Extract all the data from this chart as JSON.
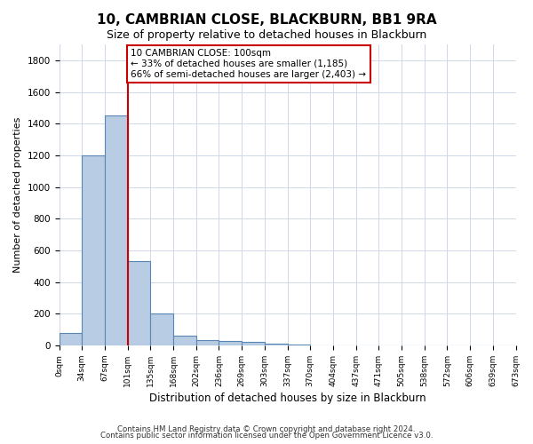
{
  "title1": "10, CAMBRIAN CLOSE, BLACKBURN, BB1 9RA",
  "title2": "Size of property relative to detached houses in Blackburn",
  "xlabel": "Distribution of detached houses by size in Blackburn",
  "ylabel": "Number of detached properties",
  "bar_values": [
    80,
    1200,
    1450,
    530,
    200,
    60,
    35,
    30,
    20,
    10,
    5,
    2,
    1,
    0,
    0,
    0,
    0,
    0,
    0,
    0
  ],
  "bin_labels": [
    "0sqm",
    "34sqm",
    "67sqm",
    "101sqm",
    "135sqm",
    "168sqm",
    "202sqm",
    "236sqm",
    "269sqm",
    "303sqm",
    "337sqm",
    "370sqm",
    "404sqm",
    "437sqm",
    "471sqm",
    "505sqm",
    "538sqm",
    "572sqm",
    "606sqm",
    "639sqm",
    "673sqm"
  ],
  "bar_color": "#b8cce4",
  "bar_edge_color": "#5a86b5",
  "vline_x": 3,
  "vline_color": "#cc0000",
  "annotation_line1": "10 CAMBRIAN CLOSE: 100sqm",
  "annotation_line2": "← 33% of detached houses are smaller (1,185)",
  "annotation_line3": "66% of semi-detached houses are larger (2,403) →",
  "annotation_box_color": "#cc0000",
  "ylim": [
    0,
    1900
  ],
  "yticks": [
    0,
    200,
    400,
    600,
    800,
    1000,
    1200,
    1400,
    1600,
    1800
  ],
  "footer1": "Contains HM Land Registry data © Crown copyright and database right 2024.",
  "footer2": "Contains public sector information licensed under the Open Government Licence v3.0.",
  "background_color": "#ffffff",
  "grid_color": "#d0d8e8"
}
